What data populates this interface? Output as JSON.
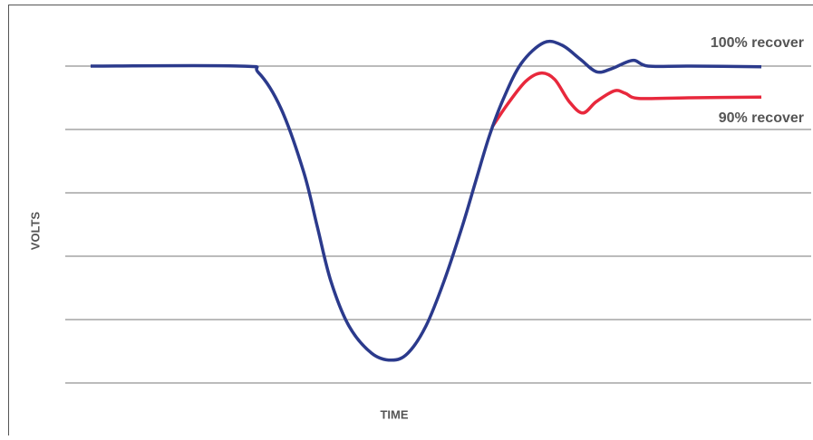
{
  "chart_data": {
    "type": "line",
    "x_label": "TIME",
    "y_label": "VOLTS",
    "xlim": [
      0,
      100
    ],
    "ylim": [
      0,
      5
    ],
    "yticks": [
      0,
      1,
      2,
      3,
      4,
      5
    ],
    "grid": true,
    "series": [
      {
        "name": "90% recover",
        "color": "#e8283c",
        "x": [
          57.23,
          59.3,
          61.73,
          63.79,
          65.61,
          67.56,
          69.38,
          71.2,
          73.63,
          75.09,
          76.91,
          83.6,
          93.32
        ],
        "values": [
          4.04,
          4.4,
          4.76,
          4.89,
          4.79,
          4.44,
          4.26,
          4.44,
          4.61,
          4.57,
          4.49,
          4.5,
          4.51
        ]
      },
      {
        "name": "100% recover",
        "color": "#2b3a8c",
        "x": [
          3.4,
          23.45,
          25.88,
          28.92,
          31.96,
          33.78,
          35.6,
          38.03,
          41.07,
          43.74,
          45.93,
          48.36,
          50.79,
          53.22,
          55.04,
          56.86,
          58.69,
          61.12,
          64.16,
          66.59,
          69.02,
          71.23,
          73.27,
          76.06,
          78.13,
          83.6,
          93.32
        ],
        "values": [
          5.0,
          5.0,
          4.9,
          4.33,
          3.33,
          2.47,
          1.61,
          0.9,
          0.47,
          0.36,
          0.47,
          0.9,
          1.61,
          2.47,
          3.19,
          3.9,
          4.47,
          5.04,
          5.37,
          5.33,
          5.11,
          4.91,
          4.96,
          5.09,
          5.0,
          5.0,
          4.99
        ]
      }
    ]
  }
}
